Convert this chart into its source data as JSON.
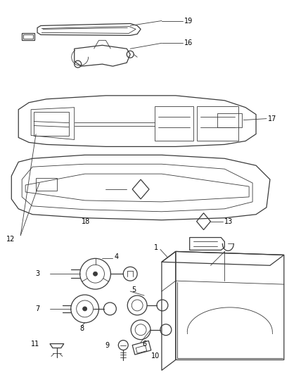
{
  "bg_color": "#ffffff",
  "lc": "#3a3a3a",
  "fig_w": 4.38,
  "fig_h": 5.33,
  "dpi": 100,
  "label_fs": 7,
  "thin": 0.6,
  "mid": 0.9,
  "thick": 1.2
}
